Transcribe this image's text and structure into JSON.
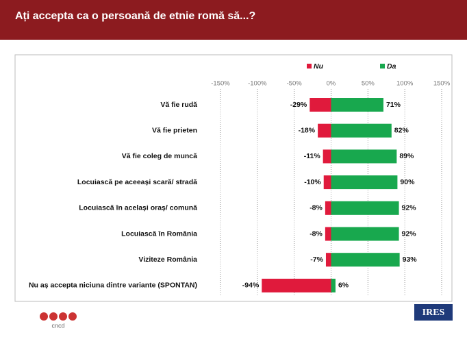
{
  "chart_data": {
    "type": "bar",
    "orientation": "horizontal",
    "title": "Ați accepta ca o persoană de etnie romă să...?",
    "categories": [
      "Vă fie rudă",
      "Vă fie prieten",
      "Vă fie coleg de muncă",
      "Locuiască pe aceeași scară/ stradă",
      "Locuiască în același oraș/ comună",
      "Locuiască în România",
      "Viziteze România",
      "Nu aș accepta niciuna dintre variante (SPONTAN)"
    ],
    "series": [
      {
        "name": "Nu",
        "color": "#e01a3c",
        "values": [
          -29,
          -18,
          -11,
          -10,
          -8,
          -8,
          -7,
          -94
        ],
        "value_labels": [
          "-29%",
          "-18%",
          "-11%",
          "-10%",
          "-8%",
          "-8%",
          "-7%",
          "-94%"
        ]
      },
      {
        "name": "Da",
        "color": "#18a84e",
        "values": [
          71,
          82,
          89,
          90,
          92,
          92,
          93,
          6
        ],
        "value_labels": [
          "71%",
          "82%",
          "89%",
          "90%",
          "92%",
          "92%",
          "93%",
          "6%"
        ]
      }
    ],
    "xlim": [
      -150,
      150
    ],
    "xticks": [
      {
        "value": -150,
        "label": "-150%"
      },
      {
        "value": -100,
        "label": "-100%"
      },
      {
        "value": -50,
        "label": "-50%"
      },
      {
        "value": 0,
        "label": "0%"
      },
      {
        "value": 50,
        "label": "50%"
      },
      {
        "value": 100,
        "label": "100%"
      },
      {
        "value": 150,
        "label": "150%"
      }
    ],
    "grid": true,
    "legend": "top",
    "logos": [
      "cncd",
      "IRES"
    ]
  }
}
